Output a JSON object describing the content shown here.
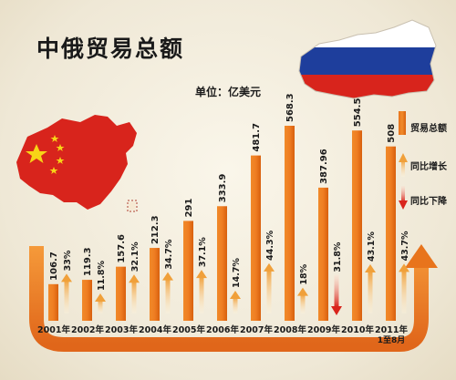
{
  "title": "中俄贸易总额",
  "unit": "单位：亿美元",
  "legend": {
    "total": "贸易总额",
    "increase": "同比增长",
    "decrease": "同比下降"
  },
  "colors": {
    "bar": "#ef7d22",
    "increase_arrow": "#f0a84a",
    "decrease_arrow": "#d9241c",
    "china_flag": "#d8241c",
    "russia_white": "#ffffff",
    "russia_blue": "#1e3e9c",
    "russia_red": "#d8241c"
  },
  "icons": [
    "china-map-flag-icon",
    "russia-map-flag-icon",
    "up-arrow-icon",
    "down-arrow-icon"
  ],
  "chart_data": {
    "type": "bar",
    "categories": [
      "2001年",
      "2002年",
      "2003年",
      "2004年",
      "2005年",
      "2006年",
      "2007年",
      "2008年",
      "2009年",
      "2010年",
      "2011年 1至8月"
    ],
    "values": [
      106.7,
      119.3,
      157.6,
      212.3,
      291,
      333.9,
      481.7,
      568.3,
      387.96,
      554.5,
      508
    ],
    "value_labels": [
      "106.7",
      "119.3",
      "157.6",
      "212.3",
      "291",
      "333.9",
      "481.7",
      "568.3",
      "387.96",
      "554.5",
      "508"
    ],
    "yoy_change_percent": [
      33,
      11.8,
      32.1,
      34.7,
      37.1,
      14.7,
      44.3,
      18,
      -31.8,
      43.1,
      43.7
    ],
    "yoy_labels": [
      "33%",
      "11.8%",
      "32.1%",
      "34.7%",
      "37.1%",
      "14.7%",
      "44.3%",
      "18%",
      "31.8%",
      "43.1%",
      "43.7%"
    ],
    "year_lines": [
      [
        "2001年"
      ],
      [
        "2002年"
      ],
      [
        "2003年"
      ],
      [
        "2004年"
      ],
      [
        "2005年"
      ],
      [
        "2006年"
      ],
      [
        "2007年"
      ],
      [
        "2008年"
      ],
      [
        "2009年"
      ],
      [
        "2010年"
      ],
      [
        "2011年",
        "1至8月"
      ]
    ],
    "ylim": [
      0,
      600
    ],
    "xlabel": "",
    "ylabel": "",
    "grid": false,
    "legend_position": "right"
  }
}
